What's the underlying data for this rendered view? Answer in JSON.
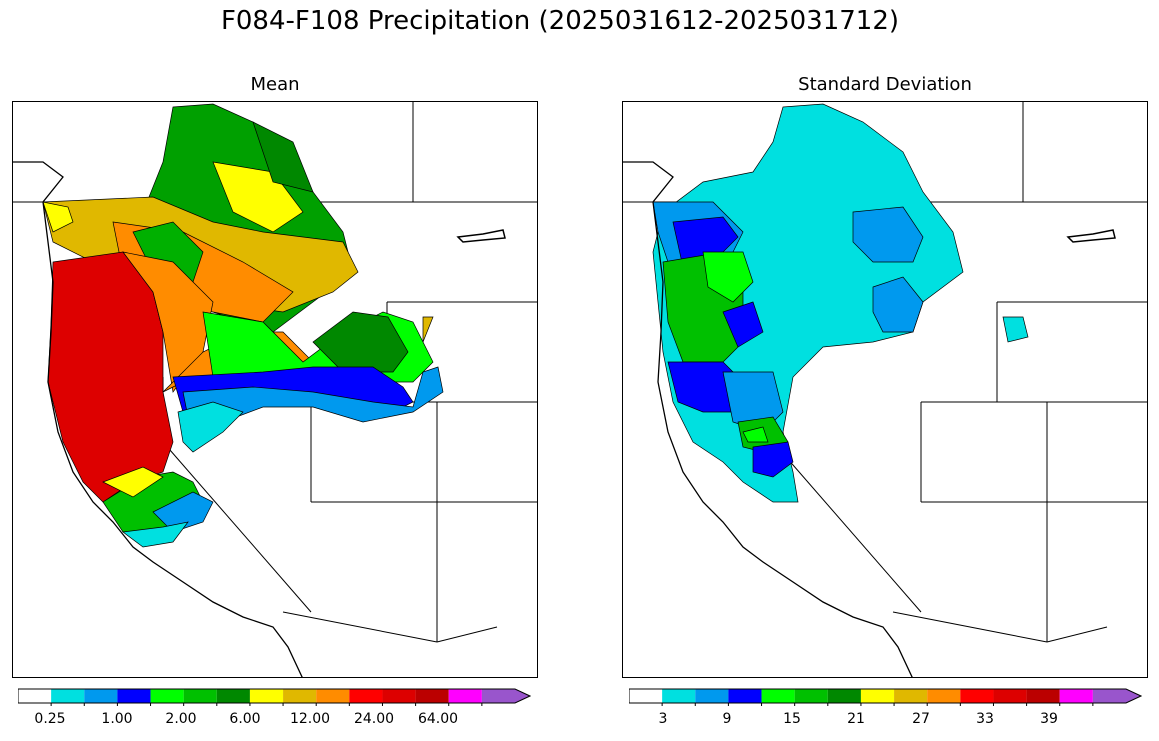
{
  "figure": {
    "title": "F084-F108 Precipitation (2025031612-2025031712)"
  },
  "panels": [
    {
      "id": "mean",
      "title": "Mean",
      "legend": {
        "colors": [
          "#ffffff",
          "#00e0e0",
          "#0099ee",
          "#0000ff",
          "#00ff00",
          "#00c000",
          "#008800",
          "#ffff00",
          "#e0b800",
          "#ff8c00",
          "#ff0000",
          "#dd0000",
          "#bb0000",
          "#ff00ff",
          "#9955cc"
        ],
        "tick_labels": [
          "0.25",
          "1.00",
          "2.00",
          "6.00",
          "12.00",
          "24.00",
          "64.00"
        ]
      }
    },
    {
      "id": "stddev",
      "title": "Standard Deviation",
      "legend": {
        "colors": [
          "#ffffff",
          "#00e0e0",
          "#0099ee",
          "#0000ff",
          "#00ff00",
          "#00c000",
          "#008800",
          "#ffff00",
          "#e0b800",
          "#ff8c00",
          "#ff0000",
          "#dd0000",
          "#bb0000",
          "#ff00ff",
          "#9955cc"
        ],
        "tick_labels": [
          "3",
          "9",
          "15",
          "21",
          "27",
          "33",
          "39"
        ]
      }
    }
  ]
}
